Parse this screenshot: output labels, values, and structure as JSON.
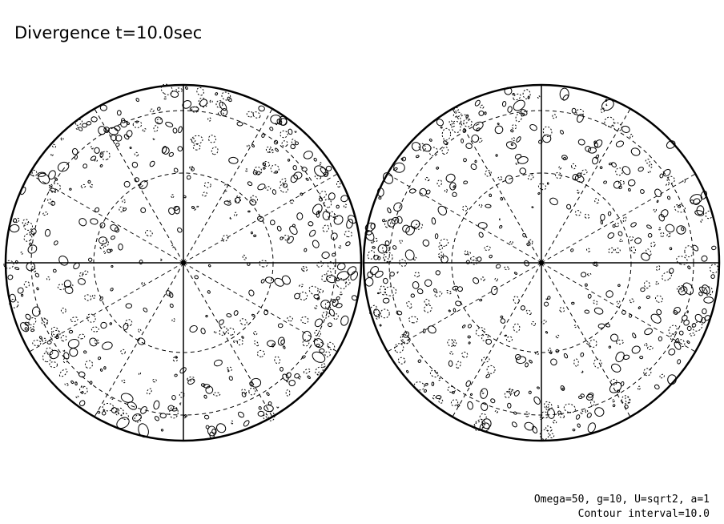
{
  "title": "Divergence t=10.0sec",
  "footer": {
    "params": "Omega=50, g=10, U=sqrt2, a=1",
    "contour_interval": "Contour interval=10.0"
  }
}
